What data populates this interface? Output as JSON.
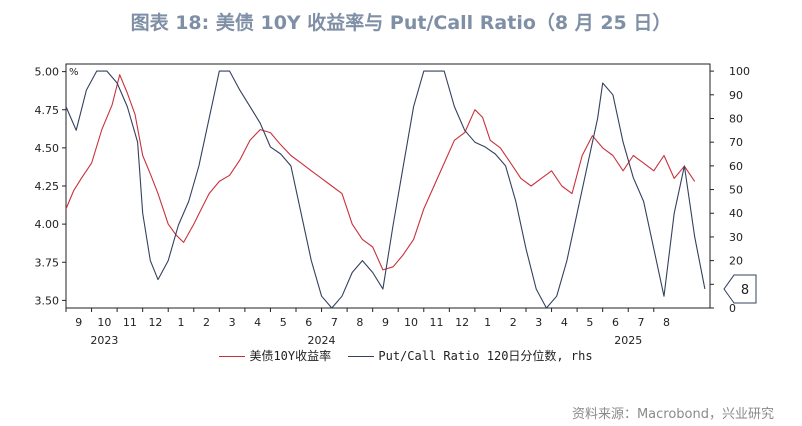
{
  "title": "图表 18: 美债 10Y 收益率与 Put/Call Ratio（8 月 25 日）",
  "source": "资料来源：Macrobond，兴业研究",
  "legend": {
    "s1": "美债10Y收益率",
    "s2": "Put/Call Ratio 120日分位数, rhs"
  },
  "colors": {
    "s1": "#c8323c",
    "s2": "#34415e",
    "axis": "#222222",
    "title": "#7f8fa6"
  },
  "chart_data": {
    "type": "line",
    "title": "美债 10Y 收益率与 Put/Call Ratio（8 月 25 日）",
    "y_left": {
      "min": 3.45,
      "max": 5.05,
      "ticks": [
        "3.50",
        "3.75",
        "4.00",
        "4.25",
        "4.50",
        "4.75",
        "5.00"
      ],
      "unit": "%"
    },
    "y_right": {
      "min": 0,
      "max": 103,
      "ticks": [
        0,
        10,
        20,
        30,
        40,
        50,
        60,
        70,
        80,
        90,
        100
      ]
    },
    "x_range": [
      0,
      25.2
    ],
    "x_ticks": [
      "9",
      "10",
      "11",
      "12",
      "1",
      "2",
      "3",
      "4",
      "5",
      "6",
      "7",
      "8",
      "9",
      "10",
      "11",
      "12",
      "1",
      "2",
      "3",
      "4",
      "5",
      "6",
      "7",
      "8"
    ],
    "year_labels": [
      {
        "label": "2023",
        "x": 1.5
      },
      {
        "label": "2024",
        "x": 10.0
      },
      {
        "label": "2025",
        "x": 22.0
      }
    ],
    "last_value_label": "8",
    "series": [
      {
        "name": "美债10Y收益率",
        "axis": "left",
        "points": [
          [
            0,
            4.1
          ],
          [
            0.3,
            4.22
          ],
          [
            0.6,
            4.3
          ],
          [
            1,
            4.4
          ],
          [
            1.4,
            4.62
          ],
          [
            1.8,
            4.78
          ],
          [
            2.1,
            4.98
          ],
          [
            2.4,
            4.86
          ],
          [
            2.7,
            4.72
          ],
          [
            3.0,
            4.45
          ],
          [
            3.3,
            4.33
          ],
          [
            3.6,
            4.2
          ],
          [
            4.0,
            4.0
          ],
          [
            4.3,
            3.93
          ],
          [
            4.6,
            3.88
          ],
          [
            5.0,
            4.0
          ],
          [
            5.3,
            4.1
          ],
          [
            5.6,
            4.2
          ],
          [
            6.0,
            4.28
          ],
          [
            6.4,
            4.32
          ],
          [
            6.8,
            4.42
          ],
          [
            7.2,
            4.55
          ],
          [
            7.6,
            4.62
          ],
          [
            8.0,
            4.6
          ],
          [
            8.4,
            4.52
          ],
          [
            8.8,
            4.45
          ],
          [
            9.2,
            4.4
          ],
          [
            9.6,
            4.35
          ],
          [
            10.0,
            4.3
          ],
          [
            10.4,
            4.25
          ],
          [
            10.8,
            4.2
          ],
          [
            11.2,
            4.0
          ],
          [
            11.6,
            3.9
          ],
          [
            12.0,
            3.85
          ],
          [
            12.4,
            3.7
          ],
          [
            12.8,
            3.72
          ],
          [
            13.2,
            3.8
          ],
          [
            13.6,
            3.9
          ],
          [
            14.0,
            4.1
          ],
          [
            14.4,
            4.25
          ],
          [
            14.8,
            4.4
          ],
          [
            15.2,
            4.55
          ],
          [
            15.6,
            4.6
          ],
          [
            16.0,
            4.75
          ],
          [
            16.3,
            4.7
          ],
          [
            16.6,
            4.55
          ],
          [
            17.0,
            4.5
          ],
          [
            17.4,
            4.4
          ],
          [
            17.8,
            4.3
          ],
          [
            18.2,
            4.25
          ],
          [
            18.6,
            4.3
          ],
          [
            19.0,
            4.35
          ],
          [
            19.4,
            4.25
          ],
          [
            19.8,
            4.2
          ],
          [
            20.2,
            4.45
          ],
          [
            20.6,
            4.58
          ],
          [
            21.0,
            4.5
          ],
          [
            21.4,
            4.45
          ],
          [
            21.8,
            4.35
          ],
          [
            22.2,
            4.45
          ],
          [
            22.6,
            4.4
          ],
          [
            23.0,
            4.35
          ],
          [
            23.4,
            4.45
          ],
          [
            23.8,
            4.3
          ],
          [
            24.2,
            4.38
          ],
          [
            24.6,
            4.28
          ]
        ]
      },
      {
        "name": "Put/Call Ratio 120日分位数",
        "axis": "right",
        "points": [
          [
            0,
            85
          ],
          [
            0.4,
            75
          ],
          [
            0.8,
            92
          ],
          [
            1.2,
            100
          ],
          [
            1.6,
            100
          ],
          [
            2.0,
            95
          ],
          [
            2.4,
            85
          ],
          [
            2.8,
            70
          ],
          [
            3.0,
            40
          ],
          [
            3.3,
            20
          ],
          [
            3.6,
            12
          ],
          [
            4.0,
            20
          ],
          [
            4.4,
            35
          ],
          [
            4.8,
            45
          ],
          [
            5.2,
            60
          ],
          [
            5.6,
            80
          ],
          [
            6.0,
            100
          ],
          [
            6.4,
            100
          ],
          [
            6.8,
            92
          ],
          [
            7.2,
            85
          ],
          [
            7.6,
            78
          ],
          [
            8.0,
            68
          ],
          [
            8.4,
            65
          ],
          [
            8.8,
            60
          ],
          [
            9.2,
            40
          ],
          [
            9.6,
            20
          ],
          [
            10.0,
            5
          ],
          [
            10.4,
            0
          ],
          [
            10.8,
            5
          ],
          [
            11.2,
            15
          ],
          [
            11.6,
            20
          ],
          [
            12.0,
            15
          ],
          [
            12.4,
            8
          ],
          [
            12.8,
            35
          ],
          [
            13.2,
            60
          ],
          [
            13.6,
            85
          ],
          [
            14.0,
            100
          ],
          [
            14.4,
            100
          ],
          [
            14.8,
            100
          ],
          [
            15.2,
            85
          ],
          [
            15.6,
            75
          ],
          [
            16.0,
            70
          ],
          [
            16.4,
            68
          ],
          [
            16.8,
            65
          ],
          [
            17.2,
            60
          ],
          [
            17.6,
            45
          ],
          [
            18.0,
            25
          ],
          [
            18.4,
            8
          ],
          [
            18.8,
            0
          ],
          [
            19.2,
            5
          ],
          [
            19.6,
            20
          ],
          [
            20.0,
            40
          ],
          [
            20.4,
            60
          ],
          [
            20.8,
            80
          ],
          [
            21.0,
            95
          ],
          [
            21.4,
            90
          ],
          [
            21.8,
            70
          ],
          [
            22.2,
            55
          ],
          [
            22.6,
            45
          ],
          [
            23.0,
            25
          ],
          [
            23.4,
            5
          ],
          [
            23.8,
            40
          ],
          [
            24.2,
            60
          ],
          [
            24.6,
            30
          ],
          [
            25.0,
            8
          ]
        ]
      }
    ]
  }
}
